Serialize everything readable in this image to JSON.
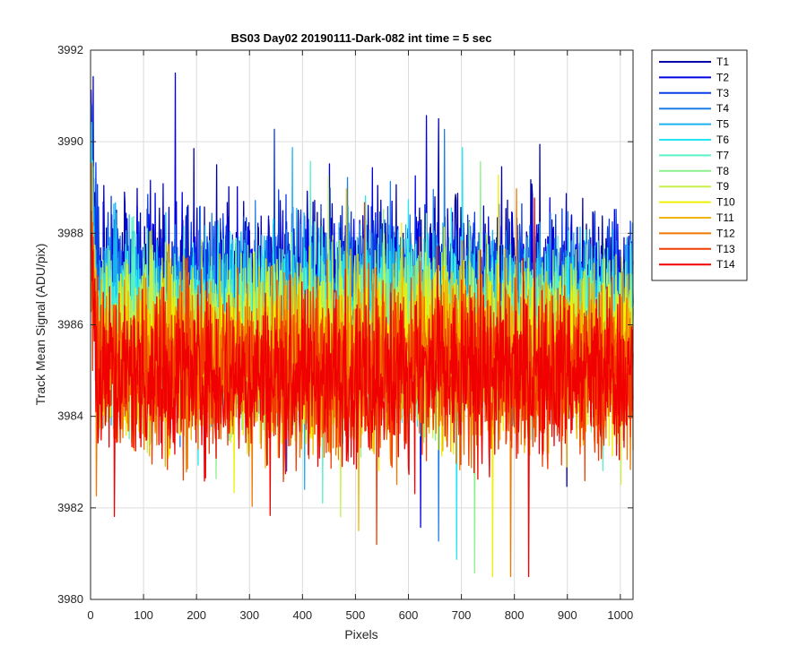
{
  "chart_data": {
    "type": "line",
    "title": "BS03 Day02 20190111-Dark-082 int time = 5 sec",
    "xlabel": "Pixels",
    "ylabel": "Track Mean Signal (ADU/pix)",
    "xlim": [
      0,
      1024
    ],
    "ylim": [
      3980,
      3992
    ],
    "xticks": [
      0,
      100,
      200,
      300,
      400,
      500,
      600,
      700,
      800,
      900,
      1000
    ],
    "yticks": [
      3980,
      3982,
      3984,
      3986,
      3988,
      3990,
      3992
    ],
    "grid": true,
    "legend_position": "outside-top-right",
    "x_count": 1024,
    "series": [
      {
        "name": "T1",
        "color": "#0000a8",
        "mean": 3986.8,
        "noise": 0.9
      },
      {
        "name": "T2",
        "color": "#0000e6",
        "mean": 3986.7,
        "noise": 0.9
      },
      {
        "name": "T3",
        "color": "#0a3ce6",
        "mean": 3986.6,
        "noise": 0.9
      },
      {
        "name": "T4",
        "color": "#1e7ee6",
        "mean": 3986.4,
        "noise": 0.9
      },
      {
        "name": "T5",
        "color": "#1ab2f0",
        "mean": 3986.2,
        "noise": 0.9
      },
      {
        "name": "T6",
        "color": "#22e6f0",
        "mean": 3986.0,
        "noise": 0.9
      },
      {
        "name": "T7",
        "color": "#5af0c8",
        "mean": 3985.9,
        "noise": 0.9
      },
      {
        "name": "T8",
        "color": "#8cf08c",
        "mean": 3985.7,
        "noise": 0.9
      },
      {
        "name": "T9",
        "color": "#c8f046",
        "mean": 3985.6,
        "noise": 0.9
      },
      {
        "name": "T10",
        "color": "#f0f000",
        "mean": 3985.4,
        "noise": 0.9
      },
      {
        "name": "T11",
        "color": "#f0b400",
        "mean": 3985.3,
        "noise": 0.9
      },
      {
        "name": "T12",
        "color": "#f07800",
        "mean": 3985.1,
        "noise": 0.9
      },
      {
        "name": "T13",
        "color": "#f03c00",
        "mean": 3985.0,
        "noise": 0.9
      },
      {
        "name": "T14",
        "color": "#f00000",
        "mean": 3984.9,
        "noise": 0.9
      }
    ]
  }
}
